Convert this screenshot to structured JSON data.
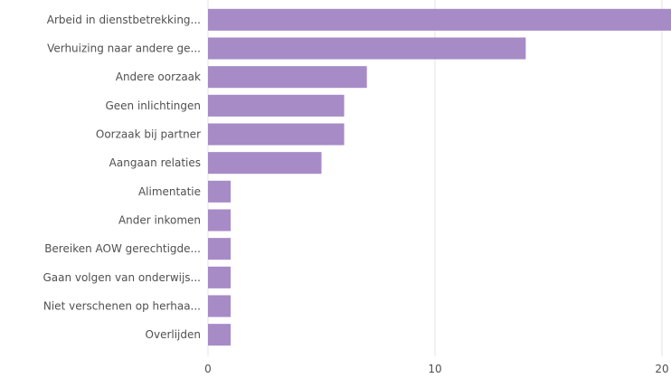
{
  "chart_data": {
    "type": "bar",
    "orientation": "horizontal",
    "title": "",
    "xlabel": "",
    "ylabel": "",
    "categories": [
      "Arbeid in dienstbetrekking...",
      "Verhuizing naar andere ge...",
      "Andere oorzaak",
      "Geen inlichtingen",
      "Oorzaak bij partner",
      "Aangaan relaties",
      "Alimentatie",
      "Ander inkomen",
      "Bereiken AOW gerechtigde...",
      "Gaan volgen van onderwijs...",
      "Niet verschenen op herhaa...",
      "Overlijden"
    ],
    "values": [
      21,
      14,
      7,
      6,
      6,
      5,
      1,
      1,
      1,
      1,
      1,
      1
    ],
    "xlim": [
      0,
      20.4
    ],
    "xticks": [
      0,
      10,
      20
    ],
    "grid": true,
    "bar_color": "#a78bc6"
  }
}
